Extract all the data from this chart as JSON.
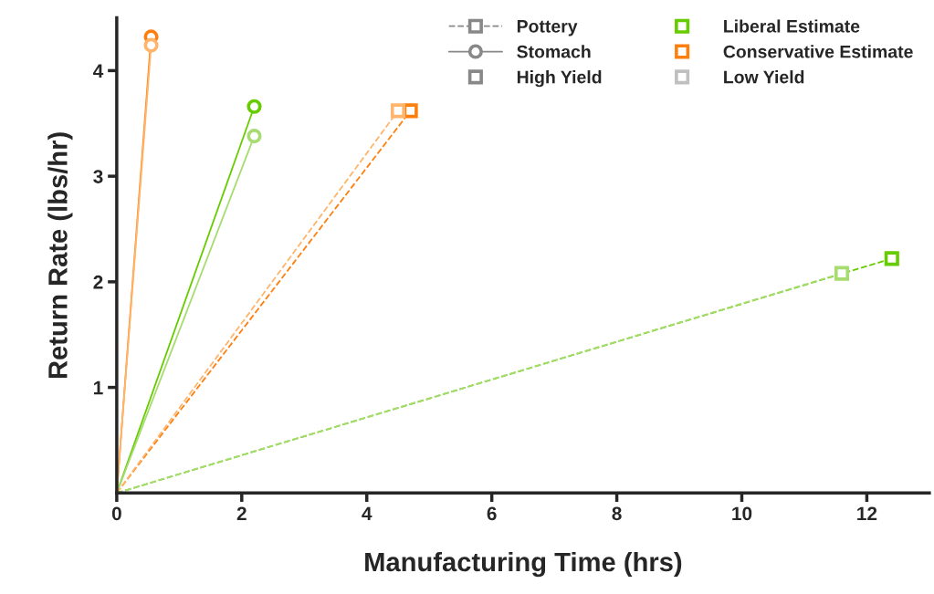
{
  "chart_data": {
    "type": "line",
    "xlabel": "Manufacturing Time (hrs)",
    "ylabel": "Return Rate (lbs/hr)",
    "xlim": [
      0,
      13
    ],
    "xticks": [
      0,
      2,
      4,
      6,
      8,
      10,
      12
    ],
    "ylim": [
      0,
      4.5
    ],
    "yticks": [
      1,
      2,
      3,
      4
    ],
    "grid": false,
    "legend": "top right",
    "series": [
      {
        "color": "#ff7f0e",
        "x": [
          0,
          0.55
        ],
        "values": [
          0,
          4.32
        ],
        "marker": "circle",
        "line_style": "solid"
      },
      {
        "color": "#ffb56b",
        "x": [
          0,
          0.55
        ],
        "values": [
          0,
          4.24
        ],
        "marker": "circle",
        "line_style": "solid"
      },
      {
        "color": "#66cc00",
        "x": [
          0,
          2.2
        ],
        "values": [
          0,
          3.66
        ],
        "marker": "circle",
        "line_style": "solid"
      },
      {
        "color": "#a6dc70",
        "x": [
          0,
          2.2
        ],
        "values": [
          0,
          3.38
        ],
        "marker": "circle",
        "line_style": "solid"
      },
      {
        "color": "#ff7f0e",
        "x": [
          0,
          4.7
        ],
        "values": [
          0,
          3.62
        ],
        "marker": "square",
        "line_style": "dashed"
      },
      {
        "color": "#ffb56b",
        "x": [
          0,
          4.5
        ],
        "values": [
          0,
          3.62
        ],
        "marker": "square",
        "line_style": "dashed"
      },
      {
        "color": "#66cc00",
        "x": [
          0,
          12.4
        ],
        "values": [
          0,
          2.22
        ],
        "marker": "square",
        "line_style": "dashed"
      },
      {
        "color": "#a6dc70",
        "x": [
          0,
          11.6
        ],
        "values": [
          0,
          2.08
        ],
        "marker": "square",
        "line_style": "dashed"
      },
      {
        "name": "Pottery",
        "color": "#888888",
        "marker": "square",
        "line_style": "dashed"
      },
      {
        "name": "Stomach",
        "color": "#888888",
        "marker": "circle",
        "line_style": "solid"
      },
      {
        "name": "High Yield",
        "color": "#888888",
        "marker": "square",
        "line_style": "none"
      },
      {
        "name": "Liberal Estimate",
        "color": "#66cc00",
        "marker": "square",
        "line_style": "none"
      },
      {
        "name": "Conservative Estimate",
        "color": "#ff7f0e",
        "marker": "square",
        "line_style": "none"
      },
      {
        "name": "Low Yield",
        "color": "#c0c0c0",
        "marker": "square",
        "line_style": "none"
      }
    ]
  }
}
